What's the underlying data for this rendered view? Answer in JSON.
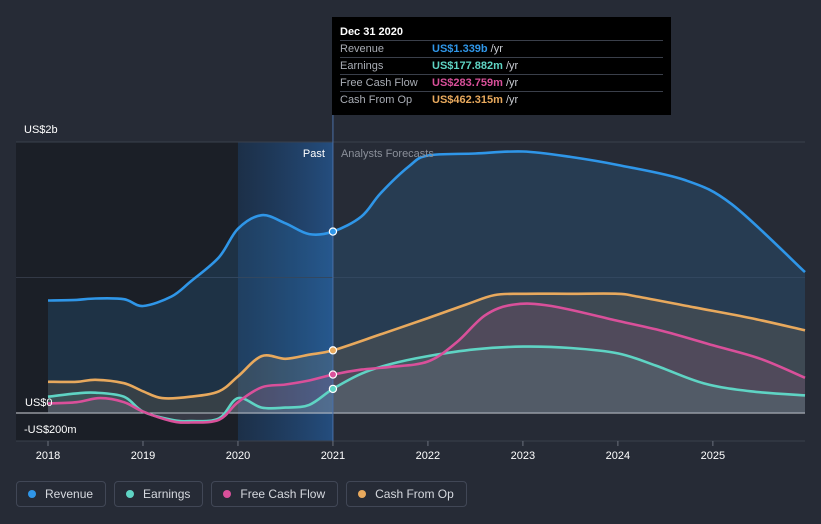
{
  "chart_data": {
    "type": "area",
    "title": "",
    "xlabel": "",
    "ylabel": "",
    "x_ticks": [
      "2018",
      "2019",
      "2020",
      "2021",
      "2022",
      "2023",
      "2024",
      "2025"
    ],
    "y_ticks": [
      {
        "value": 2000,
        "label": "US$2b"
      },
      {
        "value": 0,
        "label": "US$0"
      },
      {
        "value": -200,
        "label": "-US$200m"
      }
    ],
    "ylim": [
      -200,
      2000
    ],
    "xlim": [
      2018.0,
      2025.97
    ],
    "past_label": "Past",
    "forecast_label": "Analysts Forecasts",
    "divider_x": 2021.0,
    "highlight_range": [
      2020.0,
      2021.0
    ],
    "series": [
      {
        "name": "Revenue",
        "color": "#2f96e8",
        "x": [
          2018.0,
          2018.3,
          2018.5,
          2018.8,
          2019.0,
          2019.3,
          2019.5,
          2019.8,
          2020.0,
          2020.25,
          2020.5,
          2020.75,
          2021.0,
          2021.3,
          2021.5,
          2021.8,
          2022.0,
          2022.5,
          2023.0,
          2023.5,
          2024.0,
          2024.7,
          2025.2,
          2025.97
        ],
        "values": [
          830,
          835,
          845,
          840,
          790,
          860,
          970,
          1150,
          1360,
          1460,
          1400,
          1320,
          1339,
          1450,
          1620,
          1820,
          1900,
          1915,
          1930,
          1890,
          1830,
          1720,
          1540,
          1040
        ]
      },
      {
        "name": "Earnings",
        "color": "#5fd4c4",
        "x": [
          2018.0,
          2018.3,
          2018.5,
          2018.8,
          2019.0,
          2019.3,
          2019.5,
          2019.8,
          2020.0,
          2020.25,
          2020.5,
          2020.75,
          2021.0,
          2021.3,
          2021.6,
          2022.0,
          2022.5,
          2023.0,
          2023.5,
          2024.0,
          2024.4,
          2024.9,
          2025.4,
          2025.97
        ],
        "values": [
          120,
          145,
          150,
          120,
          10,
          -50,
          -60,
          -40,
          110,
          40,
          40,
          60,
          177.882,
          290,
          360,
          420,
          470,
          490,
          480,
          440,
          350,
          220,
          160,
          130
        ]
      },
      {
        "name": "Free Cash Flow",
        "color": "#d9509a",
        "x": [
          2018.0,
          2018.3,
          2018.55,
          2018.8,
          2019.0,
          2019.3,
          2019.5,
          2019.8,
          2020.0,
          2020.25,
          2020.5,
          2020.75,
          2021.0,
          2021.3,
          2021.6,
          2022.0,
          2022.3,
          2022.6,
          2022.9,
          2023.3,
          2024.0,
          2024.5,
          2025.0,
          2025.5,
          2025.97
        ],
        "values": [
          70,
          80,
          110,
          80,
          10,
          -60,
          -70,
          -50,
          80,
          190,
          210,
          240,
          283.759,
          320,
          340,
          380,
          520,
          720,
          800,
          790,
          680,
          600,
          500,
          400,
          260
        ]
      },
      {
        "name": "Cash From Op",
        "color": "#e8a95d",
        "x": [
          2018.0,
          2018.3,
          2018.5,
          2018.8,
          2019.0,
          2019.2,
          2019.5,
          2019.8,
          2020.0,
          2020.25,
          2020.5,
          2020.75,
          2021.0,
          2021.5,
          2022.0,
          2022.4,
          2022.7,
          2023.0,
          2023.5,
          2024.0,
          2024.2,
          2024.8,
          2025.4,
          2025.97
        ],
        "values": [
          230,
          230,
          245,
          220,
          160,
          110,
          120,
          160,
          270,
          420,
          400,
          430,
          462.315,
          580,
          700,
          800,
          870,
          880,
          880,
          880,
          860,
          780,
          700,
          610
        ]
      }
    ],
    "markers_at": 2021.0
  },
  "tooltip": {
    "date": "Dec 31 2020",
    "rows": [
      {
        "label": "Revenue",
        "value": "US$1.339b",
        "unit": "/yr",
        "color": "#2f96e8"
      },
      {
        "label": "Earnings",
        "value": "US$177.882m",
        "unit": "/yr",
        "color": "#5fd4c4"
      },
      {
        "label": "Free Cash Flow",
        "value": "US$283.759m",
        "unit": "/yr",
        "color": "#d9509a"
      },
      {
        "label": "Cash From Op",
        "value": "US$462.315m",
        "unit": "/yr",
        "color": "#e8a95d"
      }
    ]
  },
  "legend": [
    {
      "label": "Revenue",
      "color": "#2f96e8"
    },
    {
      "label": "Earnings",
      "color": "#5fd4c4"
    },
    {
      "label": "Free Cash Flow",
      "color": "#d9509a"
    },
    {
      "label": "Cash From Op",
      "color": "#e8a95d"
    }
  ]
}
